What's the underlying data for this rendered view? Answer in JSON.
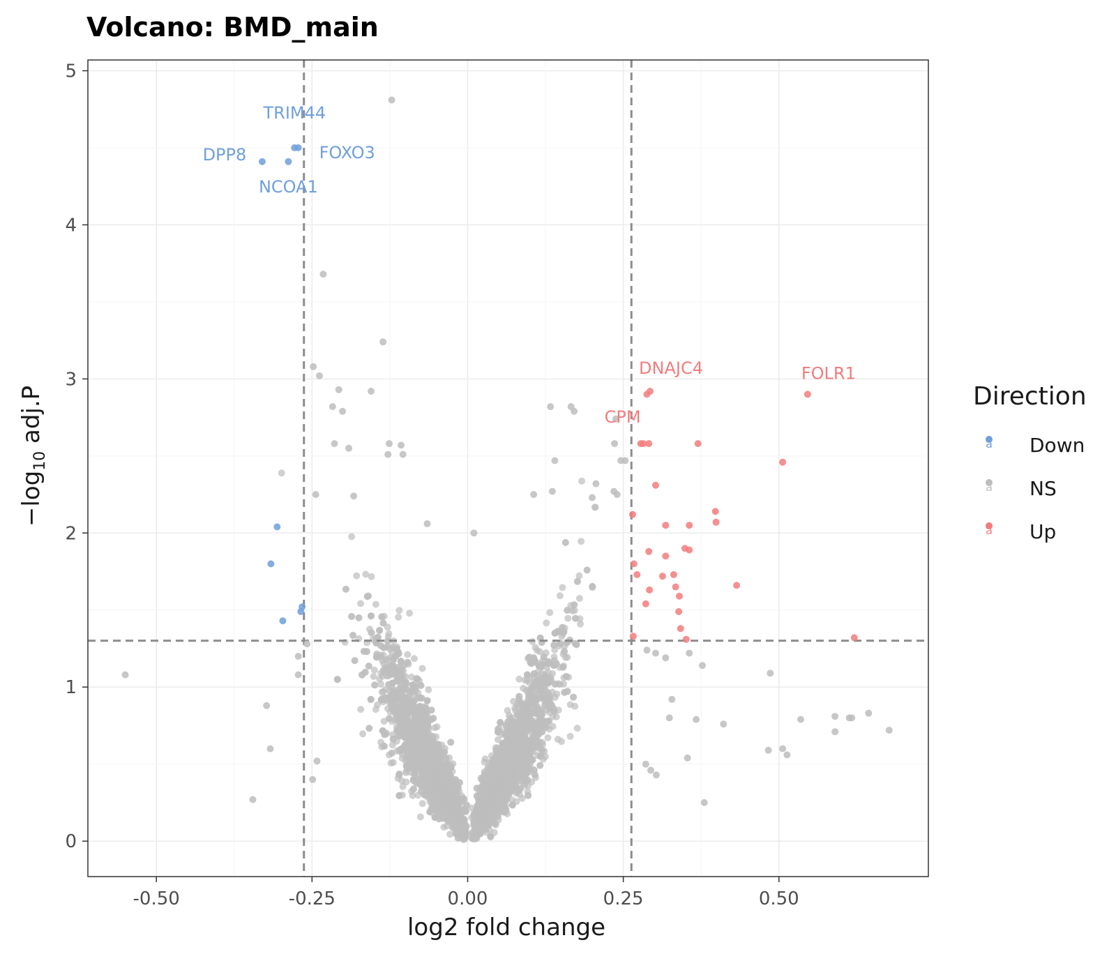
{
  "colors": {
    "Down": "#6f9fdc",
    "NS": "#bdbdbd",
    "Up": "#f27c7c",
    "threshold_line": "#8c8c8c",
    "grid": "#ebebeb",
    "panel_border": "#333333"
  },
  "chart_data": {
    "type": "scatter",
    "title": "Volcano: BMD_main",
    "xlabel": "log2 fold change",
    "ylabel": "-log10 adj.P",
    "xlim": [
      -0.61,
      0.74
    ],
    "ylim": [
      -0.23,
      5.07
    ],
    "xticks": [
      -0.5,
      -0.25,
      0.0,
      0.25,
      0.5
    ],
    "xtick_labels": [
      "-0.50",
      "-0.25",
      "0.00",
      "0.25",
      "0.50"
    ],
    "yticks": [
      0,
      1,
      2,
      3,
      4,
      5
    ],
    "ytick_labels": [
      "0",
      "1",
      "2",
      "3",
      "4",
      "5"
    ],
    "grid": true,
    "thresholds": {
      "vertical": [
        -0.263,
        0.263
      ],
      "horizontal": 1.301
    },
    "legend": {
      "title": "Direction",
      "position": "right",
      "entries": [
        "Down",
        "NS",
        "Up"
      ],
      "glyph": "a"
    },
    "series": [
      {
        "name": "Down",
        "points": [
          [
            -0.33,
            4.41
          ],
          [
            -0.288,
            4.41
          ],
          [
            -0.278,
            4.5
          ],
          [
            -0.272,
            4.5
          ],
          [
            -0.306,
            2.04
          ],
          [
            -0.316,
            1.8
          ],
          [
            -0.297,
            1.43
          ],
          [
            -0.268,
            1.49
          ],
          [
            -0.266,
            1.52
          ]
        ]
      },
      {
        "name": "Up",
        "points": [
          [
            0.288,
            2.9
          ],
          [
            0.293,
            2.92
          ],
          [
            0.546,
            2.9
          ],
          [
            0.278,
            2.58
          ],
          [
            0.282,
            2.58
          ],
          [
            0.291,
            2.58
          ],
          [
            0.37,
            2.58
          ],
          [
            0.506,
            2.46
          ],
          [
            0.302,
            2.31
          ],
          [
            0.265,
            2.12
          ],
          [
            0.398,
            2.14
          ],
          [
            0.399,
            2.07
          ],
          [
            0.318,
            2.05
          ],
          [
            0.356,
            2.05
          ],
          [
            0.291,
            1.88
          ],
          [
            0.318,
            1.85
          ],
          [
            0.349,
            1.9
          ],
          [
            0.356,
            1.89
          ],
          [
            0.267,
            1.8
          ],
          [
            0.272,
            1.73
          ],
          [
            0.313,
            1.72
          ],
          [
            0.331,
            1.73
          ],
          [
            0.432,
            1.66
          ],
          [
            0.292,
            1.63
          ],
          [
            0.334,
            1.65
          ],
          [
            0.34,
            1.59
          ],
          [
            0.286,
            1.54
          ],
          [
            0.339,
            1.49
          ],
          [
            0.342,
            1.38
          ],
          [
            0.351,
            1.31
          ],
          [
            0.266,
            1.33
          ],
          [
            0.621,
            1.32
          ]
        ]
      },
      {
        "name": "NS",
        "points": [
          [
            -0.122,
            4.81
          ],
          [
            -0.232,
            3.68
          ],
          [
            -0.136,
            3.24
          ],
          [
            -0.248,
            3.08
          ],
          [
            -0.238,
            3.02
          ],
          [
            -0.207,
            2.93
          ],
          [
            -0.155,
            2.92
          ],
          [
            -0.217,
            2.82
          ],
          [
            -0.201,
            2.79
          ],
          [
            -0.214,
            2.58
          ],
          [
            -0.191,
            2.55
          ],
          [
            -0.126,
            2.58
          ],
          [
            -0.107,
            2.57
          ],
          [
            -0.128,
            2.51
          ],
          [
            -0.104,
            2.51
          ],
          [
            0.133,
            2.82
          ],
          [
            0.166,
            2.82
          ],
          [
            0.171,
            2.79
          ],
          [
            0.238,
            2.74
          ],
          [
            0.236,
            2.58
          ],
          [
            0.246,
            2.47
          ],
          [
            0.253,
            2.47
          ],
          [
            0.14,
            2.47
          ],
          [
            0.106,
            2.25
          ],
          [
            0.235,
            2.27
          ],
          [
            0.206,
            2.32
          ],
          [
            0.136,
            2.27
          ],
          [
            0.2,
            2.23
          ],
          [
            0.24,
            2.25
          ],
          [
            -0.244,
            2.25
          ],
          [
            -0.183,
            2.24
          ],
          [
            -0.065,
            2.06
          ],
          [
            0.01,
            2.0
          ],
          [
            -0.55,
            1.08
          ],
          [
            -0.323,
            0.88
          ],
          [
            -0.317,
            0.6
          ],
          [
            -0.345,
            0.27
          ],
          [
            0.486,
            1.09
          ],
          [
            0.617,
            0.8
          ],
          [
            0.59,
            0.81
          ],
          [
            0.613,
            0.8
          ],
          [
            0.644,
            0.83
          ],
          [
            0.677,
            0.72
          ],
          [
            0.59,
            0.71
          ],
          [
            0.411,
            0.76
          ],
          [
            0.367,
            0.79
          ],
          [
            0.535,
            0.79
          ],
          [
            0.506,
            0.6
          ],
          [
            0.483,
            0.59
          ],
          [
            0.513,
            0.56
          ],
          [
            0.353,
            0.54
          ],
          [
            0.38,
            0.25
          ],
          [
            0.303,
            0.43
          ],
          [
            0.294,
            0.46
          ],
          [
            0.286,
            0.5
          ],
          [
            0.324,
            0.8
          ],
          [
            0.328,
            0.92
          ],
          [
            0.377,
            1.14
          ],
          [
            0.356,
            1.22
          ],
          [
            0.318,
            1.19
          ],
          [
            0.302,
            1.22
          ],
          [
            0.288,
            1.24
          ],
          [
            -0.272,
            1.08
          ],
          [
            -0.272,
            1.2
          ],
          [
            -0.258,
            1.28
          ],
          [
            -0.249,
            0.4
          ],
          [
            -0.242,
            0.52
          ]
        ]
      }
    ],
    "cloud_note_skip": false,
    "annotations": [
      {
        "text": "TRIM44",
        "x": -0.278,
        "y": 4.5,
        "series": "Down"
      },
      {
        "text": "DPP8",
        "x": -0.33,
        "y": 4.41,
        "series": "Down"
      },
      {
        "text": "FOXO3",
        "x": -0.272,
        "y": 4.5,
        "series": "Down"
      },
      {
        "text": "NCOA1",
        "x": -0.288,
        "y": 4.41,
        "series": "Down"
      },
      {
        "text": "DNAJC4",
        "x": 0.293,
        "y": 2.92,
        "series": "Up"
      },
      {
        "text": "FOLR1",
        "x": 0.546,
        "y": 2.9,
        "series": "Up"
      },
      {
        "text": "CPM",
        "x": 0.278,
        "y": 2.58,
        "series": "Up"
      }
    ]
  }
}
